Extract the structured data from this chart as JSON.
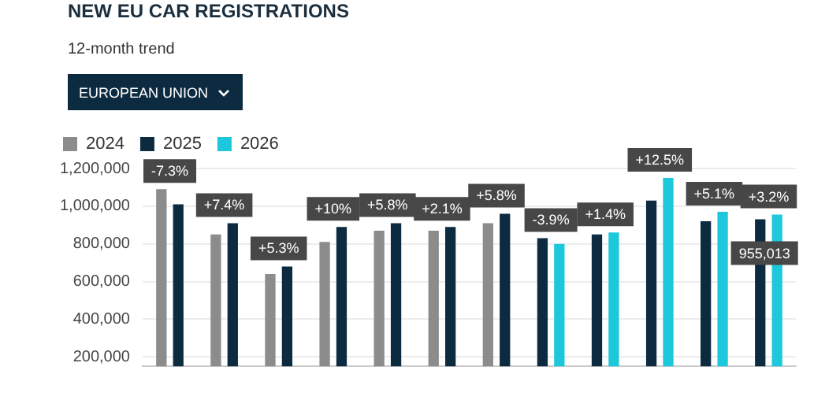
{
  "chart_data": {
    "type": "bar",
    "title": "NEW EU CAR REGISTRATIONS",
    "subtitle": "12-month trend",
    "categories": [
      null,
      null,
      null,
      null,
      null,
      null,
      null,
      null,
      null,
      null,
      null,
      null
    ],
    "series": [
      {
        "name": "2024",
        "color": "#8c8c8c",
        "values": [
          1090000,
          850000,
          640000,
          810000,
          870000,
          870000,
          910000,
          null,
          null,
          null,
          null,
          null
        ]
      },
      {
        "name": "2025",
        "color": "#0d2b40",
        "values": [
          1010000,
          910000,
          680000,
          890000,
          910000,
          890000,
          960000,
          830000,
          850000,
          1030000,
          920000,
          930000
        ]
      },
      {
        "name": "2026",
        "color": "#1ec8dc",
        "values": [
          null,
          null,
          null,
          null,
          null,
          null,
          null,
          800000,
          860000,
          1150000,
          970000,
          955013
        ],
        "value_labels": [
          null,
          null,
          null,
          null,
          null,
          null,
          null,
          null,
          null,
          null,
          null,
          "955,013"
        ]
      }
    ],
    "ylim": [
      150000,
      1200000
    ],
    "yticks": [
      {
        "value": 200000,
        "label": "200,000"
      },
      {
        "value": 400000,
        "label": "400,000"
      },
      {
        "value": 600000,
        "label": "600,000"
      },
      {
        "value": 800000,
        "label": "800,000"
      },
      {
        "value": 1000000,
        "label": "1,000,000"
      },
      {
        "value": 1200000,
        "label": "1,200,000"
      }
    ],
    "grid": "y",
    "legend": "top left",
    "annotations": [
      "EUROPEAN UNION",
      {
        "text": "-7.3%",
        "y": 1010000
      },
      {
        "text": "+7.4%",
        "y": 910000
      },
      {
        "text": "+5.3%",
        "y": 680000
      },
      {
        "text": "+10%",
        "y": 890000
      },
      {
        "text": "+5.8%",
        "y": 910000
      },
      {
        "text": "+2.1%",
        "y": 890000
      },
      {
        "text": "+5.8%",
        "y": 960000
      },
      {
        "text": "-3.9%",
        "y": 800000
      },
      {
        "text": "+1.4%",
        "y": 860000
      },
      {
        "text": "+12.5%",
        "y": 1150000
      },
      {
        "text": "+5.1%",
        "y": 970000
      },
      {
        "text": "+3.2%",
        "y": 955013
      }
    ]
  }
}
